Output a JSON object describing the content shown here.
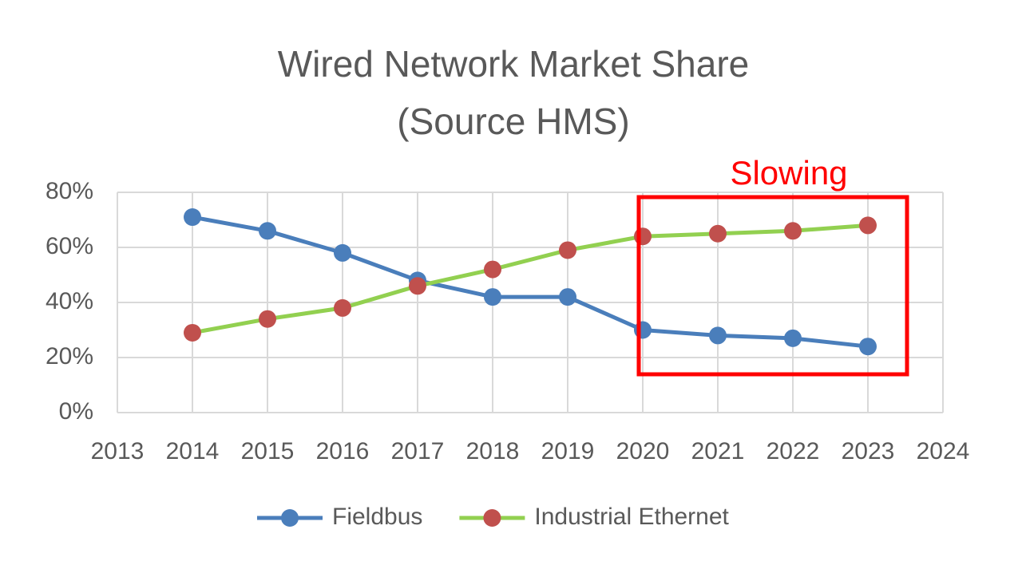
{
  "chart_data": {
    "type": "line",
    "title": [
      "Wired Network Market Share",
      "(Source HMS)"
    ],
    "x": [
      2014,
      2015,
      2016,
      2017,
      2018,
      2019,
      2020,
      2021,
      2022,
      2023
    ],
    "series": [
      {
        "name": "Fieldbus",
        "color": "#4a7ebb",
        "marker_color": "#4a7ebb",
        "values": [
          71,
          66,
          58,
          48,
          42,
          42,
          30,
          28,
          27,
          24
        ]
      },
      {
        "name": "Industrial Ethernet",
        "color": "#92d050",
        "marker_color": "#c0504d",
        "values": [
          29,
          34,
          38,
          46,
          52,
          59,
          64,
          65,
          66,
          68
        ]
      }
    ],
    "xlim": [
      2013,
      2024
    ],
    "xticks": [
      2013,
      2014,
      2015,
      2016,
      2017,
      2018,
      2019,
      2020,
      2021,
      2022,
      2023,
      2024
    ],
    "ylim": [
      0,
      80
    ],
    "yticks": [
      {
        "value": 0,
        "label": "0%"
      },
      {
        "value": 20,
        "label": "20%"
      },
      {
        "value": 40,
        "label": "40%"
      },
      {
        "value": 60,
        "label": "60%"
      },
      {
        "value": 80,
        "label": "80%"
      }
    ],
    "grid": true,
    "legend": "bottom",
    "annotation": "Slowing"
  }
}
